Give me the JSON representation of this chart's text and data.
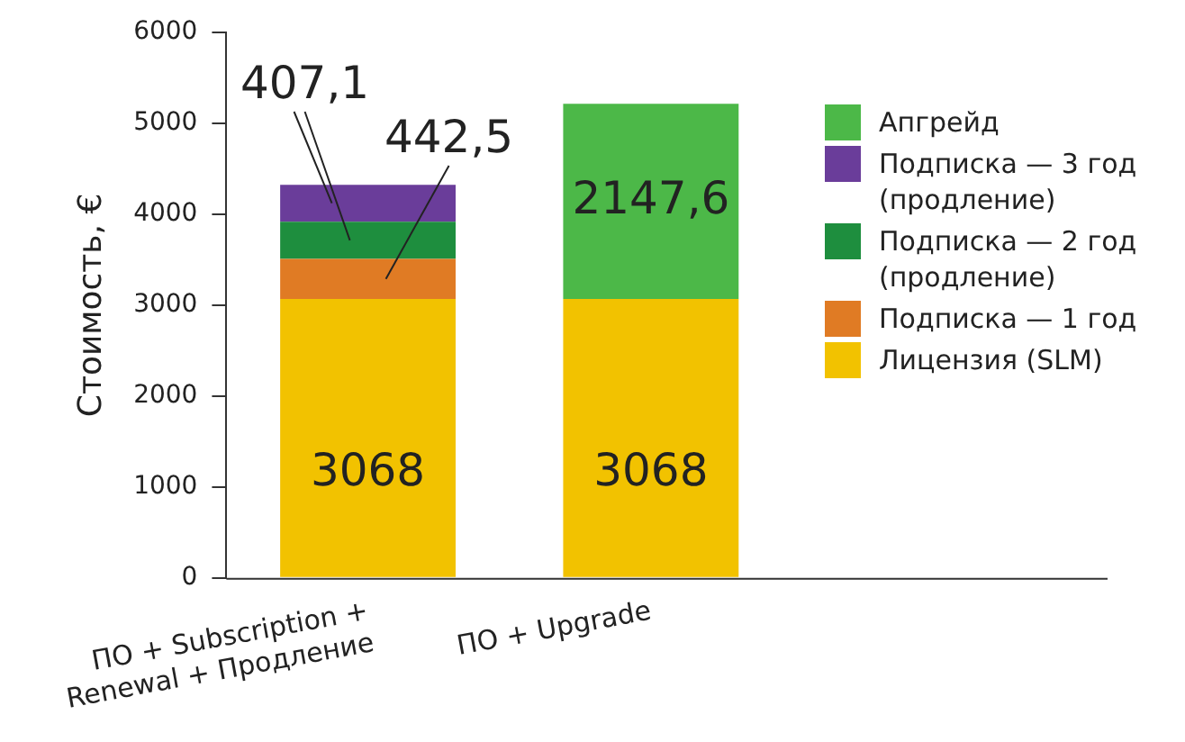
{
  "chart_data": {
    "type": "bar",
    "stacked": true,
    "ylabel": "Стоимость, €",
    "categories": [
      "ПО + Subscription + Renewal + Продление",
      "ПО + Upgrade"
    ],
    "series": [
      {
        "name": "Лицензия (SLM)",
        "color": "#f2c200",
        "values": [
          3068,
          3068
        ],
        "value_labels": [
          "3068",
          "3068"
        ]
      },
      {
        "name": "Подписка — 1 год",
        "color": "#e07b24",
        "values": [
          442.5,
          null
        ]
      },
      {
        "name": "Подписка — 2 год (продление)",
        "color": "#1e8e3e",
        "values": [
          407.1,
          null
        ]
      },
      {
        "name": "Подписка — 3 год (продление)",
        "color": "#6a3d9a",
        "values": [
          407.1,
          null
        ]
      },
      {
        "name": "Апгрейд",
        "color": "#4cb848",
        "values": [
          null,
          2147.6
        ],
        "value_labels": [
          null,
          "2147,6"
        ]
      }
    ],
    "annotations": [
      "407,1",
      "442,5"
    ],
    "ylim": [
      0,
      6000
    ],
    "yticks": [
      0,
      1000,
      2000,
      3000,
      4000,
      5000,
      6000
    ],
    "grid": false,
    "legend": "right"
  }
}
